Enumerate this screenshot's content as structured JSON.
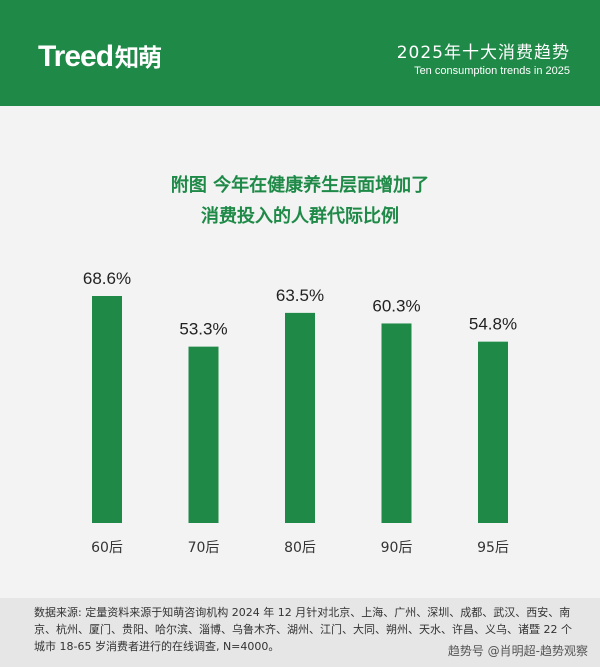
{
  "header": {
    "logo_latin": "Treed",
    "logo_cn": "知萌",
    "title": "2025年十大消费趋势",
    "subtitle": "Ten consumption trends in 2025"
  },
  "colors": {
    "accent": "#1f8a48",
    "bar": "#1f8a48",
    "background": "#f3f3f3"
  },
  "chart_data": {
    "type": "bar",
    "title_lines": [
      "附图 今年在健康养生层面增加了",
      "消费投入的人群代际比例"
    ],
    "categories": [
      "60后",
      "70后",
      "80后",
      "90后",
      "95后"
    ],
    "values": [
      68.6,
      53.3,
      63.5,
      60.3,
      54.8
    ],
    "data_labels": [
      "68.6%",
      "53.3%",
      "63.5%",
      "60.3%",
      "54.8%"
    ],
    "ylim": [
      0,
      100
    ],
    "grid": false,
    "legend": "none"
  },
  "footer": {
    "source_label": "数据来源:",
    "source_text": "定量资料来源于知萌咨询机构 2024 年 12 月针对北京、上海、广州、深圳、成都、武汉、西安、南京、杭州、厦门、贵阳、哈尔滨、淄博、乌鲁木齐、湖州、江门、大同、朔州、天水、许昌、义乌、诸暨 22 个城市 18-65 岁消费者进行的在线调查, N=4000。",
    "watermark": "趋势号 @肖明超-趋势观察"
  }
}
